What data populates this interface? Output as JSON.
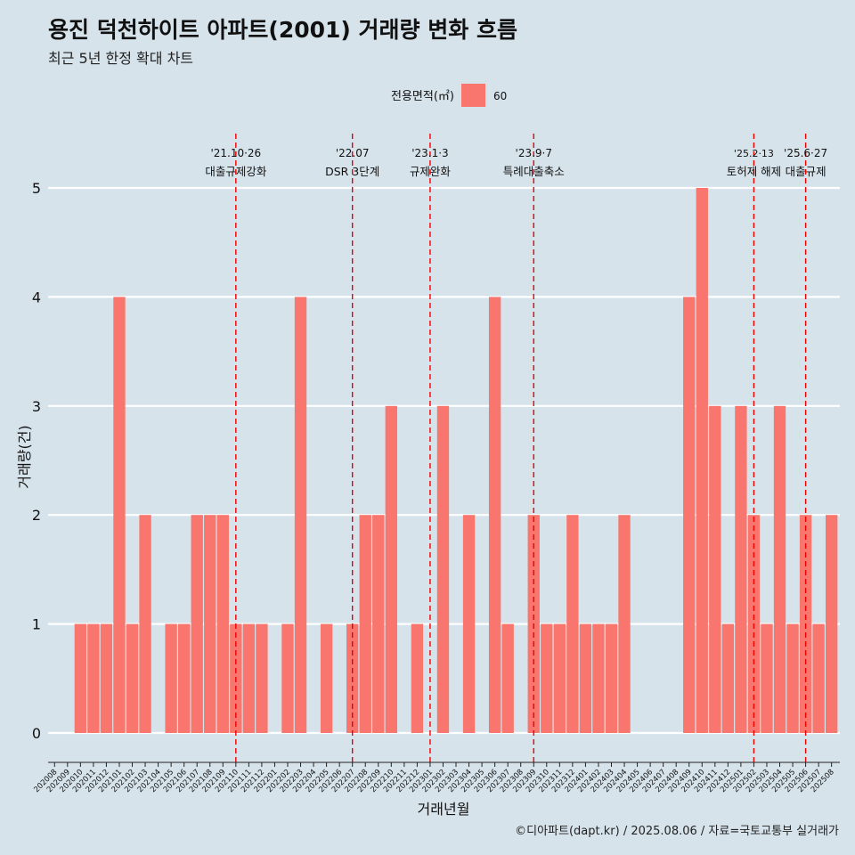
{
  "title": "용진 덕천하이트 아파트(2001) 거래량 변화 흐름",
  "subtitle": "최근 5년 한정 확대 차트",
  "caption": "©디아파트(dapt.kr) / 2025.08.06 / 자료=국토교통부 실거래가",
  "colors": {
    "background": "#d6e3eb",
    "bar": "#f8766d",
    "gridline": "#ffffff",
    "event_line": "#ee0000"
  },
  "chart_data": {
    "type": "bar",
    "xlabel": "거래년월",
    "ylabel": "거래량(건)",
    "ylim": [
      0,
      5
    ],
    "y_ticks": [
      0,
      1,
      2,
      3,
      4,
      5
    ],
    "legend": {
      "title": "전용면적(㎡)",
      "position": "top",
      "entries": [
        "60"
      ]
    },
    "categories": [
      "202008",
      "202009",
      "202010",
      "202011",
      "202012",
      "202101",
      "202102",
      "202103",
      "202104",
      "202105",
      "202106",
      "202107",
      "202108",
      "202109",
      "202110",
      "202111",
      "202112",
      "202201",
      "202202",
      "202203",
      "202204",
      "202205",
      "202206",
      "202207",
      "202208",
      "202209",
      "202210",
      "202211",
      "202212",
      "202301",
      "202302",
      "202303",
      "202304",
      "202305",
      "202306",
      "202307",
      "202308",
      "202309",
      "202310",
      "202311",
      "202312",
      "202401",
      "202402",
      "202403",
      "202404",
      "202405",
      "202406",
      "202407",
      "202408",
      "202409",
      "202410",
      "202411",
      "202412",
      "202501",
      "202502",
      "202503",
      "202504",
      "202505",
      "202506",
      "202507",
      "202508"
    ],
    "series": [
      {
        "name": "60",
        "values": [
          0,
          0,
          1,
          1,
          1,
          4,
          1,
          2,
          0,
          1,
          1,
          2,
          2,
          2,
          1,
          1,
          1,
          0,
          1,
          4,
          0,
          1,
          0,
          1,
          2,
          2,
          3,
          0,
          1,
          0,
          3,
          0,
          2,
          0,
          4,
          1,
          0,
          2,
          1,
          1,
          2,
          1,
          1,
          1,
          2,
          0,
          0,
          0,
          0,
          4,
          5,
          3,
          1,
          3,
          2,
          1,
          3,
          1,
          2,
          1,
          2
        ]
      }
    ],
    "events": [
      {
        "category": "202110",
        "date": "'21.10·26",
        "label": "대출규제강화"
      },
      {
        "category": "202207",
        "date": "'22.07",
        "label": "DSR 3단계"
      },
      {
        "category": "202301",
        "date": "'23.1·3",
        "label": "규제완화"
      },
      {
        "category": "202309",
        "date": "'23.9·7",
        "label": "특례대출축소"
      },
      {
        "category": "202502",
        "date": "'25.2·13",
        "label": "토허제 해제"
      },
      {
        "category": "202506",
        "date": "'25.6·27",
        "label": "대출규제"
      }
    ]
  }
}
